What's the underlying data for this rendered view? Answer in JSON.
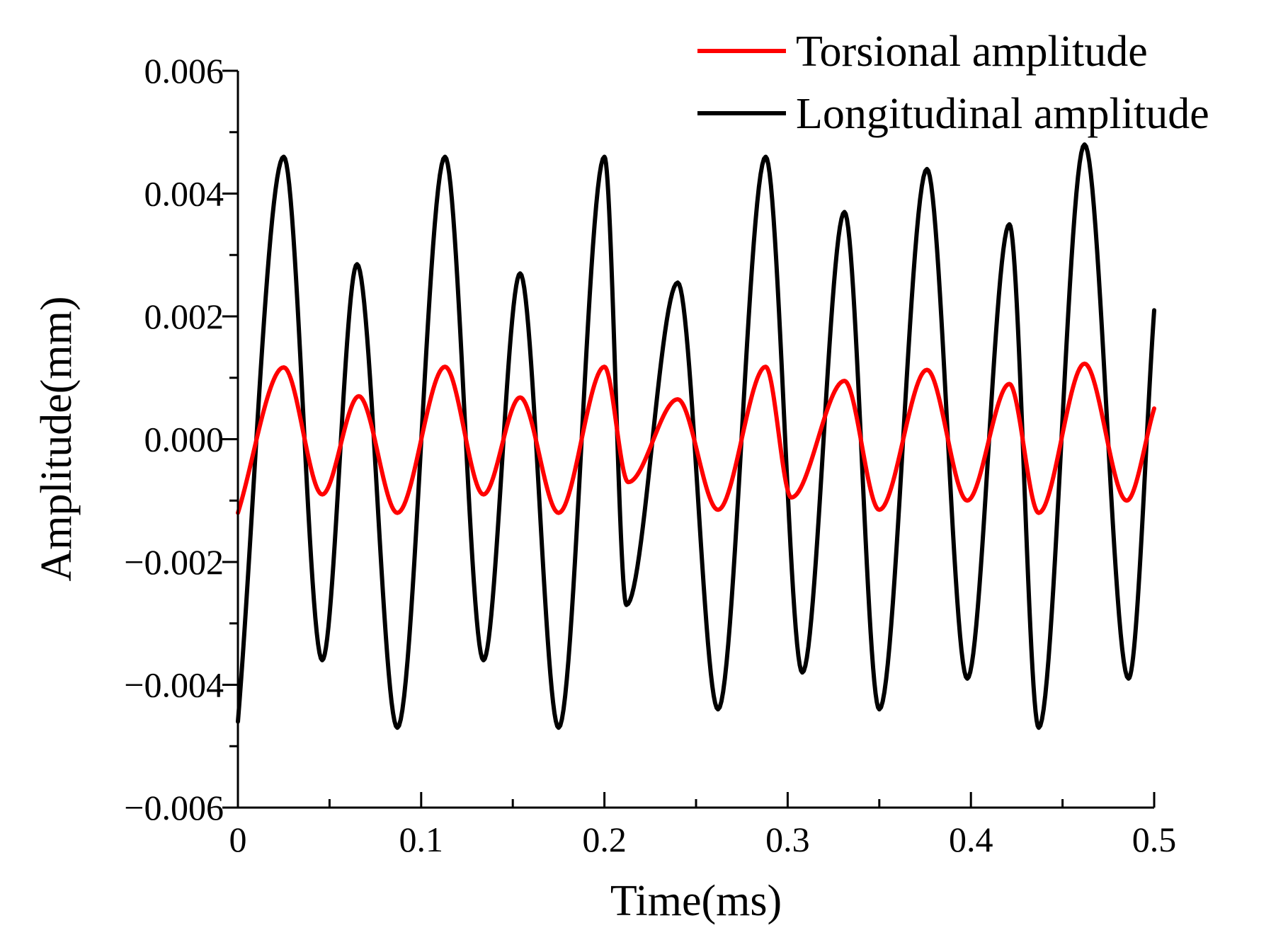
{
  "chart_data": {
    "type": "line",
    "title": "",
    "xlabel": "Time(ms)",
    "ylabel": "Amplitude(mm)",
    "xlim": [
      0,
      0.5
    ],
    "ylim": [
      -0.006,
      0.006
    ],
    "xticks": [
      {
        "value": 0,
        "label": "0"
      },
      {
        "value": 0.1,
        "label": "0.1"
      },
      {
        "value": 0.2,
        "label": "0.2"
      },
      {
        "value": 0.3,
        "label": "0.3"
      },
      {
        "value": 0.4,
        "label": "0.4"
      },
      {
        "value": 0.5,
        "label": "0.5"
      }
    ],
    "yticks": [
      {
        "value": 0.006,
        "label": "0.006"
      },
      {
        "value": 0.004,
        "label": "0.004"
      },
      {
        "value": 0.002,
        "label": "0.002"
      },
      {
        "value": 0.0,
        "label": "0.000"
      },
      {
        "value": -0.002,
        "label": "−0.002"
      },
      {
        "value": -0.004,
        "label": "−0.004"
      },
      {
        "value": -0.006,
        "label": "−0.006"
      }
    ],
    "grid": false,
    "legend_position": "top-right",
    "series": [
      {
        "name": "Torsional amplitude",
        "color": "#ff0000",
        "x": [
          0,
          0.025,
          0.046,
          0.066,
          0.087,
          0.113,
          0.134,
          0.154,
          0.175,
          0.2,
          0.213,
          0.24,
          0.262,
          0.288,
          0.302,
          0.331,
          0.35,
          0.376,
          0.398,
          0.421,
          0.437,
          0.462,
          0.485,
          0.5
        ],
        "values": [
          -0.0012,
          0.00117,
          -0.0009,
          0.0007,
          -0.0012,
          0.00118,
          -0.0009,
          0.00068,
          -0.0012,
          0.00118,
          -0.0007,
          0.00065,
          -0.00115,
          0.00118,
          -0.00095,
          0.00095,
          -0.00115,
          0.00113,
          -0.001,
          0.0009,
          -0.0012,
          0.00123,
          -0.001,
          0.0005
        ]
      },
      {
        "name": "Longitudinal amplitude",
        "color": "#000000",
        "x": [
          0,
          0.025,
          0.046,
          0.065,
          0.087,
          0.113,
          0.134,
          0.154,
          0.175,
          0.2,
          0.212,
          0.24,
          0.262,
          0.288,
          0.308,
          0.331,
          0.35,
          0.376,
          0.398,
          0.421,
          0.437,
          0.462,
          0.486,
          0.5
        ],
        "values": [
          -0.0046,
          0.0046,
          -0.0036,
          0.00285,
          -0.0047,
          0.0046,
          -0.0036,
          0.0027,
          -0.0047,
          0.0046,
          -0.0027,
          0.00255,
          -0.0044,
          0.0046,
          -0.0038,
          0.0037,
          -0.0044,
          0.0044,
          -0.0039,
          0.0035,
          -0.0047,
          0.0048,
          -0.0039,
          0.0021
        ]
      }
    ]
  }
}
